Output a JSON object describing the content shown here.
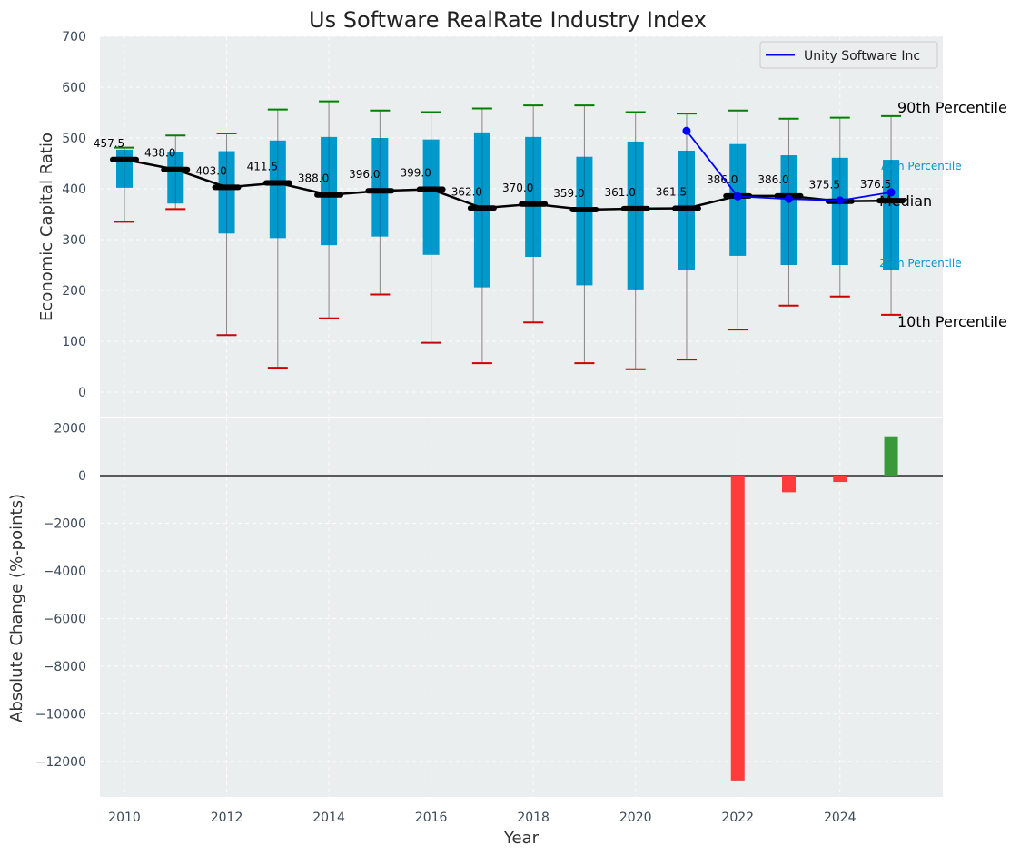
{
  "chart_data": [
    {
      "type": "box",
      "title": "Us Software RealRate Industry Index",
      "ylabel": "Economic Capital Ratio",
      "ylim": [
        -50,
        700
      ],
      "yticks": [
        0,
        100,
        200,
        300,
        400,
        500,
        600,
        700
      ],
      "grid": true,
      "legend": {
        "position": "top-right",
        "entries": [
          "Unity Software Inc"
        ]
      },
      "years": [
        2010,
        2011,
        2012,
        2013,
        2014,
        2015,
        2016,
        2017,
        2018,
        2019,
        2020,
        2021,
        2022,
        2023,
        2024,
        2025
      ],
      "p10": [
        335,
        360,
        112,
        48,
        145,
        192,
        97,
        57,
        137,
        57,
        45,
        64,
        123,
        170,
        188,
        152
      ],
      "p25": [
        402,
        371,
        312,
        303,
        289,
        306,
        270,
        206,
        266,
        210,
        202,
        241,
        268,
        250,
        250,
        241
      ],
      "median": [
        457.5,
        438.0,
        403.0,
        411.5,
        388.0,
        396.0,
        399.0,
        362.0,
        370.0,
        359.0,
        361.0,
        361.5,
        386.0,
        386.0,
        375.5,
        376.5
      ],
      "median_labels": [
        "457.5",
        "438.0",
        "403.0",
        "411.5",
        "388.0",
        "396.0",
        "399.0",
        "362.0",
        "370.0",
        "359.0",
        "361.0",
        "361.5",
        "386.0",
        "386.0",
        "375.5",
        "376.5"
      ],
      "p75": [
        477,
        472,
        474,
        495,
        502,
        500,
        497,
        511,
        502,
        463,
        493,
        475,
        488,
        466,
        461,
        457
      ],
      "p90": [
        481,
        505,
        509,
        556,
        572,
        554,
        551,
        558,
        564,
        564,
        551,
        548,
        554,
        538,
        540,
        543
      ],
      "series": [
        {
          "name": "Unity Software Inc",
          "x": [
            2021,
            2022,
            2023,
            2024,
            2025
          ],
          "values": [
            514,
            385,
            380,
            377,
            393
          ]
        }
      ],
      "annotations": {
        "p90": "90th Percentile",
        "p75": "75th Percentile",
        "median": "Median",
        "p25": "25th Percentile",
        "p10": "10th Percentile"
      },
      "colors": {
        "box": "#0099cc",
        "median_line": "#000000",
        "p90_cap": "#008000",
        "p10_cap": "#cc0000",
        "whisker": "#888888",
        "company": "#0000ff"
      }
    },
    {
      "type": "bar",
      "ylabel": "Absolute Change (%-points)",
      "xlabel": "Year",
      "ylim": [
        -13500,
        2500
      ],
      "yticks": [
        2000,
        0,
        -2000,
        -4000,
        -6000,
        -8000,
        -10000,
        -12000
      ],
      "ytick_labels": [
        "2000",
        "0",
        "−2000",
        "−4000",
        "−6000",
        "−8000",
        "−10000",
        "−12000"
      ],
      "xticks": [
        2010,
        2012,
        2014,
        2016,
        2018,
        2020,
        2022,
        2024
      ],
      "categories": [
        2022,
        2023,
        2024,
        2025
      ],
      "values": [
        -12800,
        -700,
        -270,
        1650
      ],
      "colors": {
        "positive": "#3a9a3a",
        "negative": "#ff3b3b"
      }
    }
  ]
}
